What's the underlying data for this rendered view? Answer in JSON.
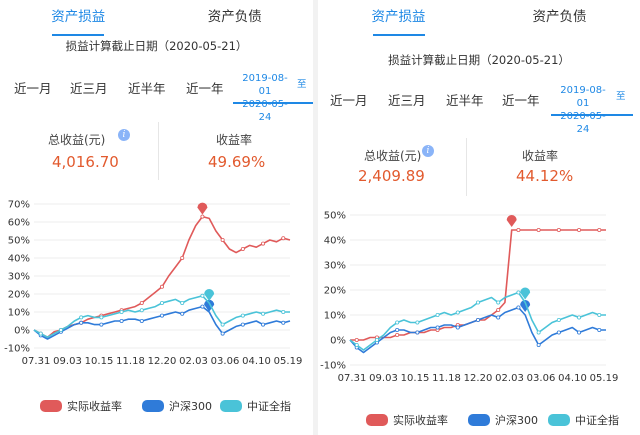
{
  "panels": [
    {
      "tabs": [
        "资产损益",
        "资产负债"
      ],
      "active_tab": 0,
      "cutoff_text": "损益计算截止日期（2020-05-21）",
      "periods": [
        "近一月",
        "近三月",
        "近半年",
        "近一年"
      ],
      "custom_range": {
        "start": "2019-08-01",
        "end": "2020-05-24",
        "to_label": "至"
      },
      "stats": {
        "total_profit_label": "总收益(元)",
        "total_profit_value": "4,016.70",
        "return_rate_label": "收益率",
        "return_rate_value": "49.69%"
      },
      "chart_data": {
        "type": "line",
        "x_tick_labels": [
          "07.31",
          "09.03",
          "10.15",
          "11.18",
          "12.20",
          "02.03",
          "03.06",
          "04.10",
          "05.19"
        ],
        "y_tick_labels": [
          "70%",
          "60%",
          "50%",
          "40%",
          "30%",
          "20%",
          "10%",
          "0%",
          "-10%"
        ],
        "ylim": [
          -10,
          70
        ],
        "grid": true,
        "legend_position": "bottom",
        "series": [
          {
            "name": "实际收益率",
            "color": "#e05a5a",
            "values": [
              0,
              -2,
              -4,
              -1,
              0,
              2,
              3,
              4,
              6,
              7,
              8,
              9,
              10,
              11,
              12,
              13,
              15,
              18,
              21,
              24,
              30,
              35,
              40,
              50,
              58,
              63,
              62,
              55,
              50,
              45,
              43,
              45,
              47,
              46,
              48,
              50,
              49,
              51,
              50
            ],
            "marker": {
              "index": 25,
              "value": 68
            }
          },
          {
            "name": "沪深300",
            "color": "#2f7bd9",
            "values": [
              0,
              -3,
              -5,
              -3,
              -1,
              1,
              3,
              4,
              4,
              3,
              3,
              4,
              5,
              5,
              6,
              6,
              5,
              6,
              7,
              8,
              9,
              10,
              9,
              11,
              12,
              13,
              10,
              3,
              -2,
              0,
              2,
              3,
              4,
              5,
              3,
              4,
              5,
              4,
              5
            ],
            "marker": {
              "index": 26,
              "value": 14
            }
          },
          {
            "name": "中证全指",
            "color": "#4ac3d8",
            "values": [
              0,
              -2,
              -4,
              -2,
              0,
              2,
              5,
              7,
              8,
              7,
              7,
              8,
              9,
              10,
              11,
              10,
              11,
              12,
              13,
              15,
              16,
              17,
              15,
              17,
              18,
              19,
              15,
              8,
              3,
              5,
              7,
              8,
              9,
              10,
              9,
              10,
              11,
              10,
              10
            ],
            "marker": {
              "index": 26,
              "value": 20
            }
          }
        ]
      }
    },
    {
      "tabs": [
        "资产损益",
        "资产负债"
      ],
      "active_tab": 0,
      "cutoff_text": "损益计算截止日期（2020-05-21）",
      "periods": [
        "近一月",
        "近三月",
        "近半年",
        "近一年"
      ],
      "custom_range": {
        "start": "2019-08-01",
        "end": "2020-05-24",
        "to_label": "至"
      },
      "stats": {
        "total_profit_label": "总收益(元)",
        "total_profit_value": "2,409.89",
        "return_rate_label": "收益率",
        "return_rate_value": "44.12%"
      },
      "chart_data": {
        "type": "line",
        "x_tick_labels": [
          "07.31",
          "09.03",
          "10.15",
          "11.18",
          "12.20",
          "02.03",
          "03.06",
          "04.10",
          "05.19"
        ],
        "y_tick_labels": [
          "50%",
          "40%",
          "30%",
          "20%",
          "10%",
          "0%",
          "-10%"
        ],
        "ylim": [
          -10,
          50
        ],
        "grid": true,
        "legend_position": "bottom",
        "series": [
          {
            "name": "实际收益率",
            "color": "#e05a5a",
            "values": [
              0,
              0,
              0,
              1,
              1,
              1,
              1,
              2,
              2,
              3,
              3,
              3,
              4,
              4,
              5,
              5,
              6,
              6,
              7,
              8,
              8,
              10,
              12,
              15,
              44,
              44,
              44,
              44,
              44,
              44,
              44,
              44,
              44,
              44,
              44,
              44,
              44,
              44,
              44
            ],
            "marker": {
              "index": 24,
              "value": 48
            }
          },
          {
            "name": "沪深300",
            "color": "#2f7bd9",
            "values": [
              0,
              -3,
              -5,
              -3,
              -1,
              1,
              3,
              4,
              4,
              3,
              3,
              4,
              5,
              5,
              6,
              6,
              5,
              6,
              7,
              8,
              9,
              10,
              9,
              11,
              12,
              13,
              10,
              3,
              -2,
              0,
              2,
              3,
              4,
              5,
              3,
              4,
              5,
              4,
              4
            ],
            "marker": {
              "index": 26,
              "value": 14
            }
          },
          {
            "name": "中证全指",
            "color": "#4ac3d8",
            "values": [
              0,
              -2,
              -4,
              -2,
              0,
              2,
              5,
              7,
              8,
              7,
              7,
              8,
              9,
              10,
              11,
              10,
              11,
              12,
              13,
              15,
              16,
              17,
              15,
              17,
              18,
              19,
              15,
              8,
              3,
              5,
              7,
              8,
              9,
              10,
              9,
              10,
              11,
              10,
              10
            ],
            "marker": {
              "index": 26,
              "value": 19
            }
          }
        ]
      }
    }
  ]
}
